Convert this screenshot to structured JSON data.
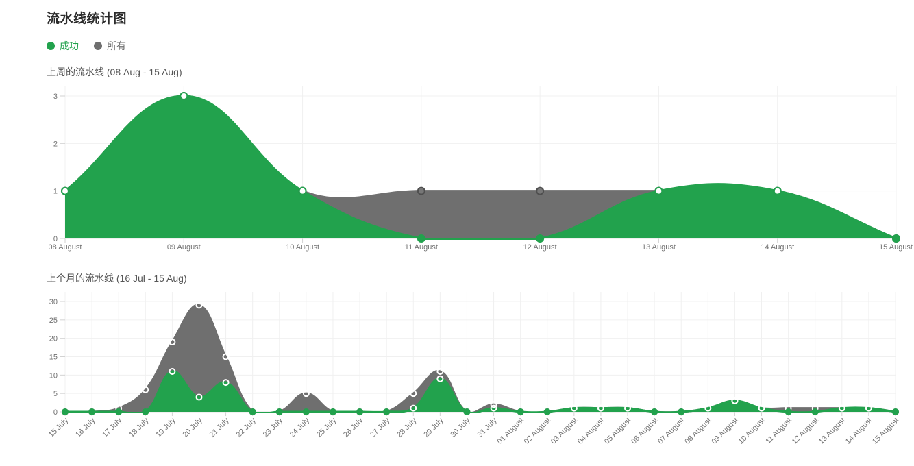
{
  "page": {
    "title": "流水线统计图"
  },
  "legend": {
    "items": [
      {
        "label": "成功",
        "color": "#22a24d"
      },
      {
        "label": "所有",
        "color": "#6f6f6f"
      }
    ]
  },
  "chart_data": [
    {
      "type": "area",
      "title": "上周的流水线 (08 Aug - 15 Aug)",
      "categories": [
        "08 August",
        "09 August",
        "10 August",
        "11 August",
        "12 August",
        "13 August",
        "14 August",
        "15 August"
      ],
      "yticks": [
        0,
        1,
        2,
        3
      ],
      "ylim": [
        0,
        3
      ],
      "grid": true,
      "legend_position": "top-left",
      "series": [
        {
          "name": "所有",
          "color": "#6f6f6f",
          "values": [
            1,
            3,
            1,
            1,
            1,
            1,
            1,
            0
          ]
        },
        {
          "name": "成功",
          "color": "#22a24d",
          "values": [
            1,
            3,
            1,
            0,
            0,
            1,
            1,
            0
          ]
        }
      ]
    },
    {
      "type": "area",
      "title": "上个月的流水线 (16 Jul - 15 Aug)",
      "categories": [
        "15 July",
        "16 July",
        "17 July",
        "18 July",
        "19 July",
        "20 July",
        "21 July",
        "22 July",
        "23 July",
        "24 July",
        "25 July",
        "26 July",
        "27 July",
        "28 July",
        "29 July",
        "30 July",
        "31 July",
        "01 August",
        "02 August",
        "03 August",
        "04 August",
        "05 August",
        "06 August",
        "07 August",
        "08 August",
        "09 August",
        "10 August",
        "11 August",
        "12 August",
        "13 August",
        "14 August",
        "15 August"
      ],
      "yticks": [
        0,
        5,
        10,
        15,
        20,
        25,
        30
      ],
      "ylim": [
        0,
        30
      ],
      "grid": true,
      "legend_position": "none",
      "series": [
        {
          "name": "所有",
          "color": "#6f6f6f",
          "values": [
            0,
            0,
            1,
            6,
            19,
            29,
            15,
            0,
            0,
            5,
            0,
            0,
            0,
            5,
            11,
            0,
            2,
            0,
            0,
            1,
            1,
            1,
            0,
            0,
            1,
            3,
            1,
            1,
            1,
            1,
            1,
            0
          ]
        },
        {
          "name": "成功",
          "color": "#22a24d",
          "values": [
            0,
            0,
            0,
            0,
            11,
            4,
            8,
            0,
            0,
            0,
            0,
            0,
            0,
            1,
            9,
            0,
            1,
            0,
            0,
            1,
            1,
            1,
            0,
            0,
            1,
            3,
            1,
            0,
            0,
            1,
            1,
            0
          ]
        }
      ]
    }
  ],
  "axis": {
    "tick_color": "#737373",
    "grid_color": "#f0f0f0",
    "baseline_color": "#e2e2e2",
    "tick_mark_color": "#d2d2d2"
  }
}
